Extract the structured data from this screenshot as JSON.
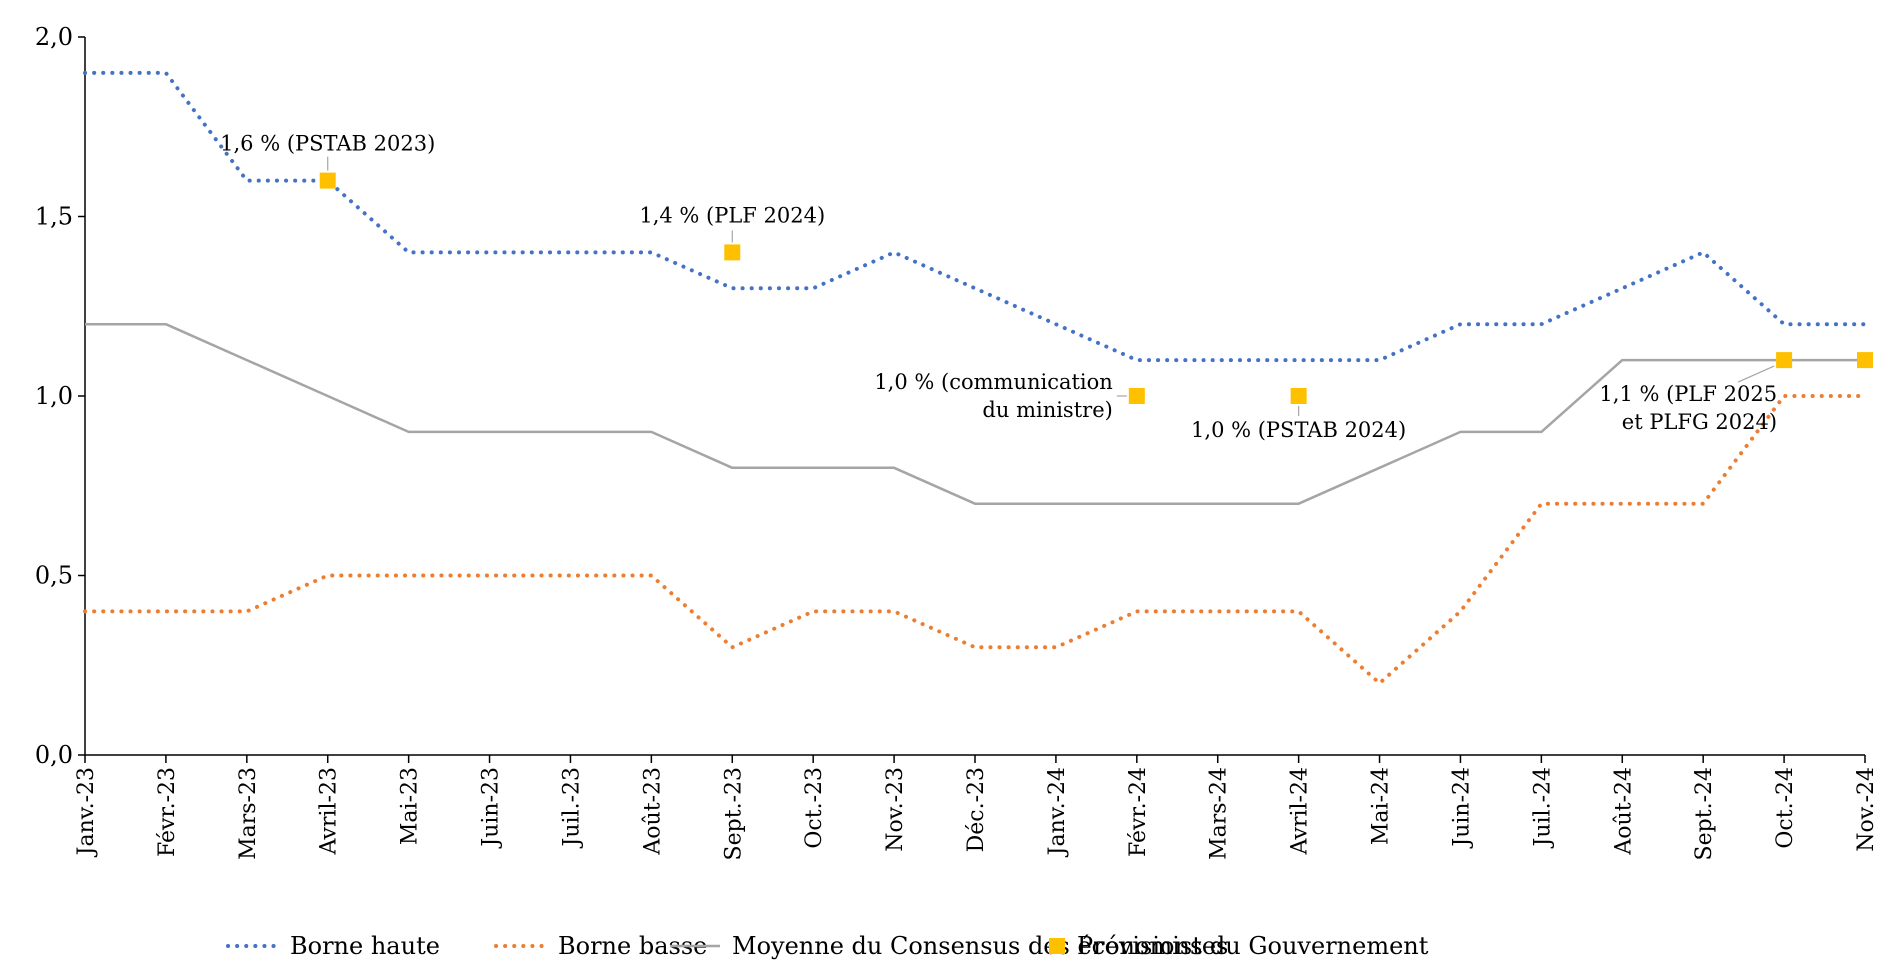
{
  "chart_data": {
    "type": "line",
    "title": "",
    "xlabel": "",
    "ylabel": "",
    "ylim": [
      0,
      2
    ],
    "yticks": [
      "0,0",
      "0,5",
      "1,0",
      "1,5",
      "2,0"
    ],
    "categories": [
      "Janv.-23",
      "Févr.-23",
      "Mars-23",
      "Avril-23",
      "Mai-23",
      "Juin-23",
      "Juil.-23",
      "Août-23",
      "Sept.-23",
      "Oct.-23",
      "Nov.-23",
      "Déc.-23",
      "Janv.-24",
      "Févr.-24",
      "Mars-24",
      "Avril-24",
      "Mai-24",
      "Juin-24",
      "Juil.-24",
      "Août-24",
      "Sept.-24",
      "Oct.-24",
      "Nov.-24"
    ],
    "series": [
      {
        "name": "Borne haute",
        "style": "dotted",
        "color": "#4472C4",
        "values": [
          1.9,
          1.9,
          1.6,
          1.6,
          1.4,
          1.4,
          1.4,
          1.4,
          1.3,
          1.3,
          1.4,
          1.3,
          1.2,
          1.1,
          1.1,
          1.1,
          1.1,
          1.2,
          1.2,
          1.3,
          1.4,
          1.2,
          1.2
        ]
      },
      {
        "name": "Borne basse",
        "style": "dotted",
        "color": "#ED7D31",
        "values": [
          0.4,
          0.4,
          0.4,
          0.5,
          0.5,
          0.5,
          0.5,
          0.5,
          0.3,
          0.4,
          0.4,
          0.3,
          0.3,
          0.4,
          0.4,
          0.4,
          0.2,
          0.4,
          0.7,
          0.7,
          0.7,
          1.0,
          1.0
        ]
      },
      {
        "name": "Moyenne du Consensus des économistes",
        "style": "solid",
        "color": "#A5A5A5",
        "values": [
          1.2,
          1.2,
          1.1,
          1.0,
          0.9,
          0.9,
          0.9,
          0.9,
          0.8,
          0.8,
          0.8,
          0.7,
          0.7,
          0.7,
          0.7,
          0.7,
          0.8,
          0.9,
          0.9,
          1.1,
          1.1,
          1.1,
          1.1
        ]
      }
    ],
    "markers": {
      "name": "Prévisions du Gouvernement",
      "color": "#FFC000",
      "points": [
        {
          "x": "Avril-23",
          "y": 1.6,
          "label": [
            "1,6 % (PSTAB 2023)"
          ]
        },
        {
          "x": "Sept.-23",
          "y": 1.4,
          "label": [
            "1,4 % (PLF 2024)"
          ]
        },
        {
          "x": "Févr.-24",
          "y": 1.0,
          "label": [
            "1,0 % (communication",
            "du ministre)"
          ]
        },
        {
          "x": "Avril-24",
          "y": 1.0,
          "label": [
            "1,0 % (PSTAB 2024)"
          ]
        },
        {
          "x": "Oct.-24",
          "y": 1.1,
          "label": [
            "1,1 % (PLF 2025",
            "et PLFG 2024)"
          ]
        },
        {
          "x": "Nov.-24",
          "y": 1.1,
          "label": []
        }
      ]
    },
    "legend_position": "bottom",
    "grid": false
  }
}
